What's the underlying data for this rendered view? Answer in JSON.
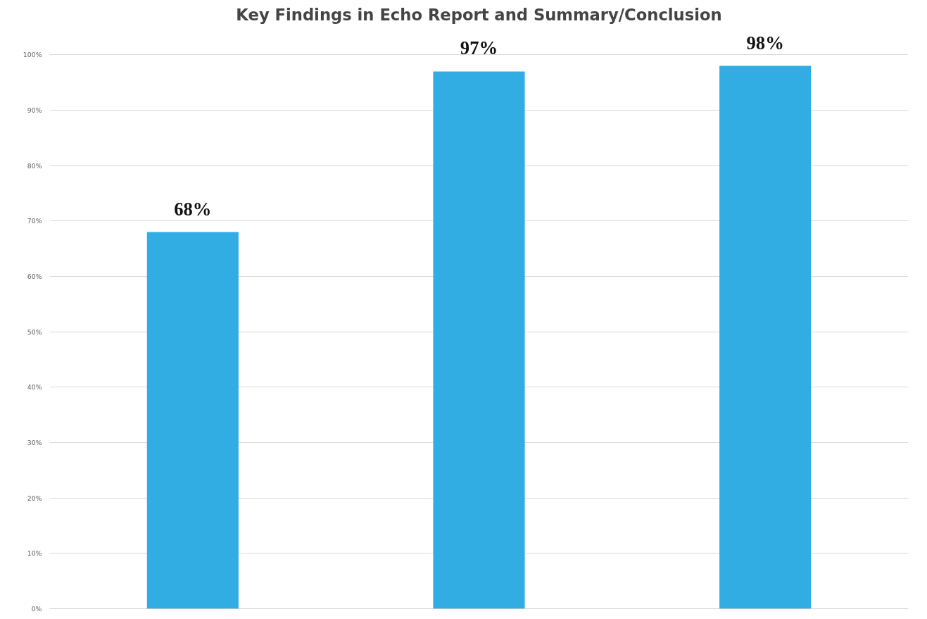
{
  "chart_data": {
    "type": "bar",
    "title": "Key Findings in Echo Report and Summary/Conclusion",
    "categories": [
      null,
      null,
      null
    ],
    "values": [
      68,
      97,
      98
    ],
    "color": "#31ade3",
    "value_labels": [
      "68%",
      "97%",
      "98%"
    ],
    "ylim": [
      0,
      100
    ],
    "yticks": [
      {
        "value": 0,
        "label": "0%"
      },
      {
        "value": 10,
        "label": "10%"
      },
      {
        "value": 20,
        "label": "20%"
      },
      {
        "value": 30,
        "label": "30%"
      },
      {
        "value": 40,
        "label": "40%"
      },
      {
        "value": 50,
        "label": "50%"
      },
      {
        "value": 60,
        "label": "60%"
      },
      {
        "value": 70,
        "label": "70%"
      },
      {
        "value": 80,
        "label": "80%"
      },
      {
        "value": 90,
        "label": "90%"
      },
      {
        "value": 100,
        "label": "100%"
      }
    ],
    "grid": "y"
  }
}
